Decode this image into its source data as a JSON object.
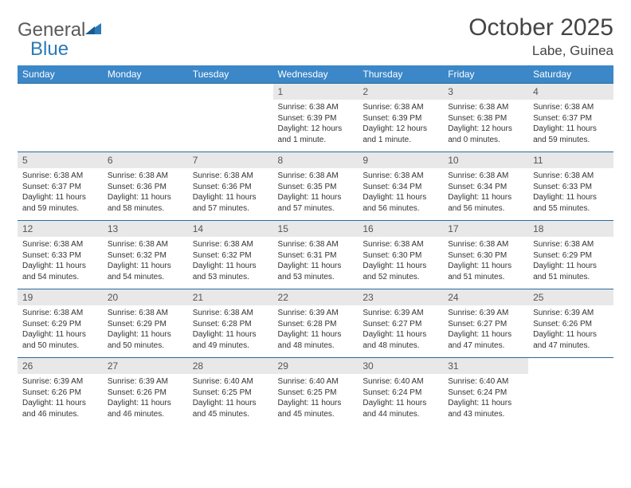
{
  "brand": {
    "part1": "General",
    "part2": "Blue"
  },
  "title": "October 2025",
  "location": "Labe, Guinea",
  "colors": {
    "header_bg": "#3b87c8",
    "header_text": "#ffffff",
    "daynum_bg": "#e8e8e8",
    "row_border": "#2a6a9c",
    "brand_gray": "#5a5a5a",
    "brand_blue": "#2a7ab8"
  },
  "fonts": {
    "title_size": 30,
    "location_size": 17,
    "dayhead_size": 12,
    "body_size": 10
  },
  "day_names": [
    "Sunday",
    "Monday",
    "Tuesday",
    "Wednesday",
    "Thursday",
    "Friday",
    "Saturday"
  ],
  "weeks": [
    [
      {
        "n": "",
        "sr": "",
        "ss": "",
        "dl": ""
      },
      {
        "n": "",
        "sr": "",
        "ss": "",
        "dl": ""
      },
      {
        "n": "",
        "sr": "",
        "ss": "",
        "dl": ""
      },
      {
        "n": "1",
        "sr": "Sunrise: 6:38 AM",
        "ss": "Sunset: 6:39 PM",
        "dl": "Daylight: 12 hours and 1 minute."
      },
      {
        "n": "2",
        "sr": "Sunrise: 6:38 AM",
        "ss": "Sunset: 6:39 PM",
        "dl": "Daylight: 12 hours and 1 minute."
      },
      {
        "n": "3",
        "sr": "Sunrise: 6:38 AM",
        "ss": "Sunset: 6:38 PM",
        "dl": "Daylight: 12 hours and 0 minutes."
      },
      {
        "n": "4",
        "sr": "Sunrise: 6:38 AM",
        "ss": "Sunset: 6:37 PM",
        "dl": "Daylight: 11 hours and 59 minutes."
      }
    ],
    [
      {
        "n": "5",
        "sr": "Sunrise: 6:38 AM",
        "ss": "Sunset: 6:37 PM",
        "dl": "Daylight: 11 hours and 59 minutes."
      },
      {
        "n": "6",
        "sr": "Sunrise: 6:38 AM",
        "ss": "Sunset: 6:36 PM",
        "dl": "Daylight: 11 hours and 58 minutes."
      },
      {
        "n": "7",
        "sr": "Sunrise: 6:38 AM",
        "ss": "Sunset: 6:36 PM",
        "dl": "Daylight: 11 hours and 57 minutes."
      },
      {
        "n": "8",
        "sr": "Sunrise: 6:38 AM",
        "ss": "Sunset: 6:35 PM",
        "dl": "Daylight: 11 hours and 57 minutes."
      },
      {
        "n": "9",
        "sr": "Sunrise: 6:38 AM",
        "ss": "Sunset: 6:34 PM",
        "dl": "Daylight: 11 hours and 56 minutes."
      },
      {
        "n": "10",
        "sr": "Sunrise: 6:38 AM",
        "ss": "Sunset: 6:34 PM",
        "dl": "Daylight: 11 hours and 56 minutes."
      },
      {
        "n": "11",
        "sr": "Sunrise: 6:38 AM",
        "ss": "Sunset: 6:33 PM",
        "dl": "Daylight: 11 hours and 55 minutes."
      }
    ],
    [
      {
        "n": "12",
        "sr": "Sunrise: 6:38 AM",
        "ss": "Sunset: 6:33 PM",
        "dl": "Daylight: 11 hours and 54 minutes."
      },
      {
        "n": "13",
        "sr": "Sunrise: 6:38 AM",
        "ss": "Sunset: 6:32 PM",
        "dl": "Daylight: 11 hours and 54 minutes."
      },
      {
        "n": "14",
        "sr": "Sunrise: 6:38 AM",
        "ss": "Sunset: 6:32 PM",
        "dl": "Daylight: 11 hours and 53 minutes."
      },
      {
        "n": "15",
        "sr": "Sunrise: 6:38 AM",
        "ss": "Sunset: 6:31 PM",
        "dl": "Daylight: 11 hours and 53 minutes."
      },
      {
        "n": "16",
        "sr": "Sunrise: 6:38 AM",
        "ss": "Sunset: 6:30 PM",
        "dl": "Daylight: 11 hours and 52 minutes."
      },
      {
        "n": "17",
        "sr": "Sunrise: 6:38 AM",
        "ss": "Sunset: 6:30 PM",
        "dl": "Daylight: 11 hours and 51 minutes."
      },
      {
        "n": "18",
        "sr": "Sunrise: 6:38 AM",
        "ss": "Sunset: 6:29 PM",
        "dl": "Daylight: 11 hours and 51 minutes."
      }
    ],
    [
      {
        "n": "19",
        "sr": "Sunrise: 6:38 AM",
        "ss": "Sunset: 6:29 PM",
        "dl": "Daylight: 11 hours and 50 minutes."
      },
      {
        "n": "20",
        "sr": "Sunrise: 6:38 AM",
        "ss": "Sunset: 6:29 PM",
        "dl": "Daylight: 11 hours and 50 minutes."
      },
      {
        "n": "21",
        "sr": "Sunrise: 6:38 AM",
        "ss": "Sunset: 6:28 PM",
        "dl": "Daylight: 11 hours and 49 minutes."
      },
      {
        "n": "22",
        "sr": "Sunrise: 6:39 AM",
        "ss": "Sunset: 6:28 PM",
        "dl": "Daylight: 11 hours and 48 minutes."
      },
      {
        "n": "23",
        "sr": "Sunrise: 6:39 AM",
        "ss": "Sunset: 6:27 PM",
        "dl": "Daylight: 11 hours and 48 minutes."
      },
      {
        "n": "24",
        "sr": "Sunrise: 6:39 AM",
        "ss": "Sunset: 6:27 PM",
        "dl": "Daylight: 11 hours and 47 minutes."
      },
      {
        "n": "25",
        "sr": "Sunrise: 6:39 AM",
        "ss": "Sunset: 6:26 PM",
        "dl": "Daylight: 11 hours and 47 minutes."
      }
    ],
    [
      {
        "n": "26",
        "sr": "Sunrise: 6:39 AM",
        "ss": "Sunset: 6:26 PM",
        "dl": "Daylight: 11 hours and 46 minutes."
      },
      {
        "n": "27",
        "sr": "Sunrise: 6:39 AM",
        "ss": "Sunset: 6:26 PM",
        "dl": "Daylight: 11 hours and 46 minutes."
      },
      {
        "n": "28",
        "sr": "Sunrise: 6:40 AM",
        "ss": "Sunset: 6:25 PM",
        "dl": "Daylight: 11 hours and 45 minutes."
      },
      {
        "n": "29",
        "sr": "Sunrise: 6:40 AM",
        "ss": "Sunset: 6:25 PM",
        "dl": "Daylight: 11 hours and 45 minutes."
      },
      {
        "n": "30",
        "sr": "Sunrise: 6:40 AM",
        "ss": "Sunset: 6:24 PM",
        "dl": "Daylight: 11 hours and 44 minutes."
      },
      {
        "n": "31",
        "sr": "Sunrise: 6:40 AM",
        "ss": "Sunset: 6:24 PM",
        "dl": "Daylight: 11 hours and 43 minutes."
      },
      {
        "n": "",
        "sr": "",
        "ss": "",
        "dl": ""
      }
    ]
  ]
}
